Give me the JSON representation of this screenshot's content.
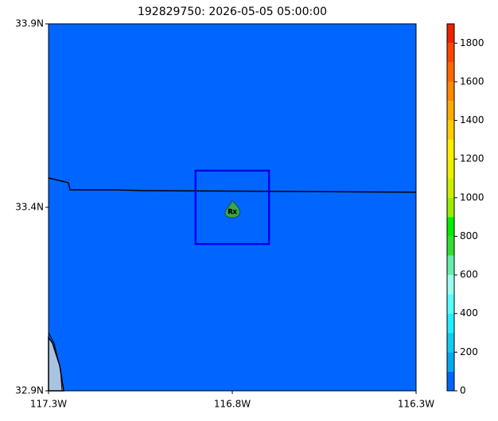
{
  "chart_data": {
    "type": "map",
    "title": "192829750: 2026-05-05 05:00:00",
    "xlim": [
      -117.3,
      -116.3
    ],
    "xticks": [
      {
        "value": -117.3,
        "label": "117.3W"
      },
      {
        "value": -116.8,
        "label": "116.8W"
      },
      {
        "value": -116.3,
        "label": "116.3W"
      }
    ],
    "ylim": [
      32.9,
      33.9
    ],
    "yticks": [
      {
        "value": 32.9,
        "label": "32.9N"
      },
      {
        "value": 33.4,
        "label": "33.4N"
      },
      {
        "value": 33.9,
        "label": "33.9N"
      }
    ],
    "background_color": "#0066ff",
    "box": {
      "lon": [
        -116.9,
        -116.7
      ],
      "lat": [
        33.3,
        33.5
      ],
      "color": "#0000ee"
    },
    "marker": {
      "label": "Rx",
      "lon": -116.8,
      "lat": 33.39,
      "color": "#33aa44"
    },
    "colorbar": {
      "ylim": [
        0,
        1900
      ],
      "yticks": [
        0,
        200,
        400,
        600,
        800,
        1000,
        1200,
        1400,
        1600,
        1800
      ],
      "bounds": [
        0,
        100,
        200,
        300,
        400,
        500,
        600,
        700,
        800,
        900,
        1000,
        1100,
        1200,
        1300,
        1400,
        1500,
        1600,
        1700,
        1800,
        1900
      ],
      "colors": [
        "#0066ff",
        "#00aaee",
        "#11ccf0",
        "#22eeff",
        "#55ffff",
        "#99ffee",
        "#66eeaa",
        "#33dd33",
        "#00ee00",
        "#99ee00",
        "#ccee00",
        "#eeee00",
        "#ffee00",
        "#ffcc00",
        "#ffaa00",
        "#ff8800",
        "#ff6600",
        "#ff4400",
        "#ee2200"
      ]
    }
  }
}
